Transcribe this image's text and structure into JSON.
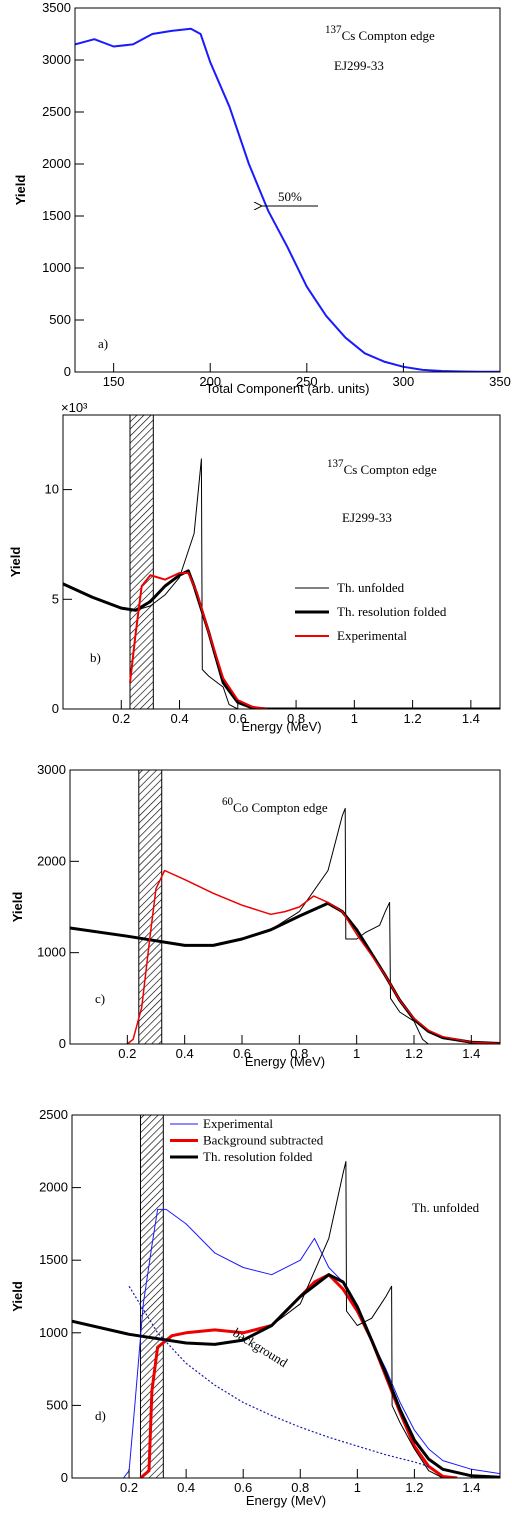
{
  "chart_data": [
    {
      "type": "line",
      "panel_label": "a)",
      "xlabel": "Total Component (arb. units)",
      "ylabel": "Yield",
      "xlim": [
        130,
        350
      ],
      "xticks": [
        150,
        200,
        250,
        300,
        350
      ],
      "ylim": [
        0,
        3500
      ],
      "yticks": [
        0,
        500,
        1000,
        1500,
        2000,
        2500,
        3000,
        3500
      ],
      "annotations": [
        {
          "sup": "137",
          "text": "Cs  Compton edge"
        },
        {
          "text": "EJ299-33"
        },
        {
          "text": "50%"
        }
      ],
      "series": [
        {
          "color": "#1a1aff",
          "width": 2,
          "x": [
            130,
            140,
            150,
            160,
            170,
            180,
            190,
            195,
            200,
            210,
            220,
            230,
            240,
            250,
            260,
            270,
            280,
            290,
            300,
            310,
            320,
            330,
            340,
            350
          ],
          "values": [
            3150,
            3200,
            3130,
            3150,
            3250,
            3280,
            3300,
            3250,
            2980,
            2550,
            2000,
            1550,
            1200,
            820,
            540,
            330,
            180,
            100,
            50,
            20,
            10,
            5,
            3,
            2
          ]
        }
      ]
    },
    {
      "type": "line",
      "panel_label": "b)",
      "xlabel": "Energy (MeV)",
      "ylabel": "Yield",
      "y_multiplier": "×10³",
      "xlim": [
        0,
        1.5
      ],
      "xticks": [
        0.2,
        0.4,
        0.6,
        0.8,
        1,
        1.2,
        1.4
      ],
      "ylim": [
        0,
        13.4
      ],
      "yticks": [
        0,
        5,
        10
      ],
      "band": [
        0.23,
        0.31
      ],
      "legend": "right",
      "annotations": [
        {
          "sup": "137",
          "text": "Cs Compton edge"
        },
        {
          "text": "EJ299-33"
        }
      ],
      "series": [
        {
          "name": "Th. unfolded",
          "color": "#000000",
          "width": 1,
          "x": [
            0,
            0.1,
            0.2,
            0.25,
            0.3,
            0.35,
            0.4,
            0.45,
            0.475,
            0.478,
            0.5,
            0.55,
            0.57,
            0.6,
            1.5
          ],
          "values": [
            5.7,
            5.1,
            4.6,
            4.5,
            4.7,
            5.2,
            6.0,
            8.0,
            11.4,
            1.8,
            1.5,
            1.0,
            0.2,
            0,
            0
          ]
        },
        {
          "name": "Th. resolution folded",
          "color": "#000000",
          "width": 3,
          "x": [
            0,
            0.1,
            0.2,
            0.25,
            0.3,
            0.35,
            0.4,
            0.43,
            0.45,
            0.5,
            0.55,
            0.6,
            0.65,
            0.7,
            1.5
          ],
          "values": [
            5.7,
            5.1,
            4.6,
            4.5,
            4.9,
            5.6,
            6.1,
            6.3,
            5.6,
            3.5,
            1.2,
            0.3,
            0.05,
            0,
            0
          ]
        },
        {
          "name": "Experimental",
          "color": "#ee0000",
          "width": 2,
          "x": [
            0.23,
            0.25,
            0.27,
            0.3,
            0.35,
            0.4,
            0.43,
            0.46,
            0.5,
            0.55,
            0.6,
            0.65,
            0.7
          ],
          "values": [
            1.2,
            3.5,
            5.6,
            6.1,
            5.9,
            6.2,
            6.2,
            5.3,
            3.5,
            1.4,
            0.4,
            0.1,
            0
          ]
        }
      ]
    },
    {
      "type": "line",
      "panel_label": "c)",
      "xlabel": "Energy (MeV)",
      "ylabel": "Yield",
      "xlim": [
        0,
        1.5
      ],
      "xticks": [
        0.2,
        0.4,
        0.6,
        0.8,
        1,
        1.2,
        1.4
      ],
      "ylim": [
        0,
        3000
      ],
      "yticks": [
        0,
        1000,
        2000,
        3000
      ],
      "band": [
        0.24,
        0.32
      ],
      "annotations": [
        {
          "sup": "60",
          "text": "Co Compton edge"
        }
      ],
      "series": [
        {
          "color": "#000000",
          "width": 1,
          "x": [
            0,
            0.2,
            0.4,
            0.5,
            0.6,
            0.7,
            0.8,
            0.9,
            0.95,
            0.96,
            0.962,
            1.0,
            1.03,
            1.08,
            1.1,
            1.115,
            1.118,
            1.15,
            1.2,
            1.23,
            1.25,
            1.5
          ],
          "values": [
            1270,
            1180,
            1080,
            1080,
            1150,
            1250,
            1450,
            1900,
            2500,
            2580,
            1150,
            1150,
            1220,
            1300,
            1450,
            1550,
            500,
            350,
            250,
            50,
            0,
            0
          ]
        },
        {
          "color": "#000000",
          "width": 3,
          "x": [
            0,
            0.2,
            0.4,
            0.5,
            0.6,
            0.7,
            0.8,
            0.9,
            0.95,
            1.0,
            1.05,
            1.1,
            1.15,
            1.2,
            1.25,
            1.3,
            1.4,
            1.5
          ],
          "values": [
            1270,
            1180,
            1080,
            1080,
            1150,
            1250,
            1400,
            1540,
            1450,
            1250,
            1000,
            750,
            480,
            270,
            140,
            70,
            20,
            5
          ]
        },
        {
          "color": "#ee0000",
          "width": 1.5,
          "x": [
            0.2,
            0.22,
            0.25,
            0.28,
            0.3,
            0.33,
            0.4,
            0.5,
            0.6,
            0.7,
            0.75,
            0.8,
            0.85,
            0.9,
            0.95,
            1.0,
            1.05,
            1.1,
            1.15,
            1.2,
            1.25,
            1.3,
            1.4,
            1.5
          ],
          "values": [
            0,
            50,
            400,
            1200,
            1700,
            1900,
            1800,
            1650,
            1520,
            1420,
            1450,
            1500,
            1620,
            1550,
            1450,
            1200,
            980,
            750,
            480,
            280,
            150,
            80,
            20,
            5
          ]
        }
      ]
    },
    {
      "type": "line",
      "panel_label": "d)",
      "xlabel": "Energy (MeV)",
      "ylabel": "Yield",
      "xlim": [
        0,
        1.5
      ],
      "xticks": [
        0.2,
        0.4,
        0.6,
        0.8,
        1,
        1.2,
        1.4
      ],
      "ylim": [
        0,
        2500
      ],
      "yticks": [
        0,
        500,
        1000,
        1500,
        2000,
        2500
      ],
      "band": [
        0.24,
        0.32
      ],
      "legend": "upper left",
      "annotations": [
        {
          "text": "Th. unfolded"
        },
        {
          "text": "background"
        }
      ],
      "series": [
        {
          "name": "Experimental",
          "color": "#1a1aff",
          "width": 1,
          "x": [
            0.18,
            0.2,
            0.22,
            0.25,
            0.28,
            0.3,
            0.33,
            0.4,
            0.5,
            0.6,
            0.7,
            0.8,
            0.85,
            0.9,
            0.95,
            1.0,
            1.05,
            1.1,
            1.15,
            1.2,
            1.25,
            1.3,
            1.4,
            1.5
          ],
          "values": [
            0,
            50,
            500,
            1200,
            1600,
            1850,
            1850,
            1750,
            1550,
            1450,
            1400,
            1500,
            1650,
            1450,
            1350,
            1150,
            950,
            750,
            520,
            330,
            200,
            120,
            60,
            30
          ]
        },
        {
          "name": "Background subtracted",
          "color": "#ee0000",
          "width": 3,
          "x": [
            0.24,
            0.27,
            0.28,
            0.3,
            0.35,
            0.4,
            0.5,
            0.6,
            0.7,
            0.8,
            0.85,
            0.9,
            0.95,
            1.0,
            1.05,
            1.1,
            1.15,
            1.2,
            1.25,
            1.3,
            1.35
          ],
          "values": [
            0,
            50,
            600,
            900,
            980,
            1000,
            1020,
            1000,
            1050,
            1250,
            1350,
            1400,
            1300,
            1150,
            950,
            700,
            450,
            220,
            80,
            10,
            0
          ]
        },
        {
          "name": "Th. resolution folded",
          "color": "#000000",
          "width": 3,
          "x": [
            0,
            0.2,
            0.4,
            0.5,
            0.6,
            0.7,
            0.8,
            0.9,
            0.95,
            1.0,
            1.05,
            1.1,
            1.15,
            1.2,
            1.25,
            1.3,
            1.4,
            1.5
          ],
          "values": [
            1080,
            990,
            930,
            920,
            950,
            1050,
            1250,
            1400,
            1350,
            1180,
            950,
            720,
            470,
            260,
            130,
            60,
            15,
            5
          ]
        },
        {
          "color": "#000000",
          "width": 1,
          "x": [
            0,
            0.2,
            0.4,
            0.5,
            0.6,
            0.7,
            0.8,
            0.9,
            0.95,
            0.96,
            0.962,
            1.0,
            1.05,
            1.1,
            1.12,
            1.122,
            1.15,
            1.2,
            1.25,
            1.3,
            1.5
          ],
          "values": [
            1080,
            990,
            930,
            920,
            950,
            1050,
            1200,
            1650,
            2100,
            2180,
            1150,
            1050,
            1100,
            1250,
            1320,
            500,
            380,
            200,
            50,
            0,
            0
          ]
        },
        {
          "color": "#1a1aaa",
          "width": 1.2,
          "line_style": "dotted",
          "x": [
            0.2,
            0.3,
            0.4,
            0.5,
            0.6,
            0.7,
            0.8,
            0.9,
            1.0,
            1.1,
            1.2,
            1.25
          ],
          "values": [
            1320,
            1000,
            790,
            640,
            520,
            430,
            350,
            280,
            220,
            160,
            110,
            80
          ]
        }
      ]
    }
  ]
}
